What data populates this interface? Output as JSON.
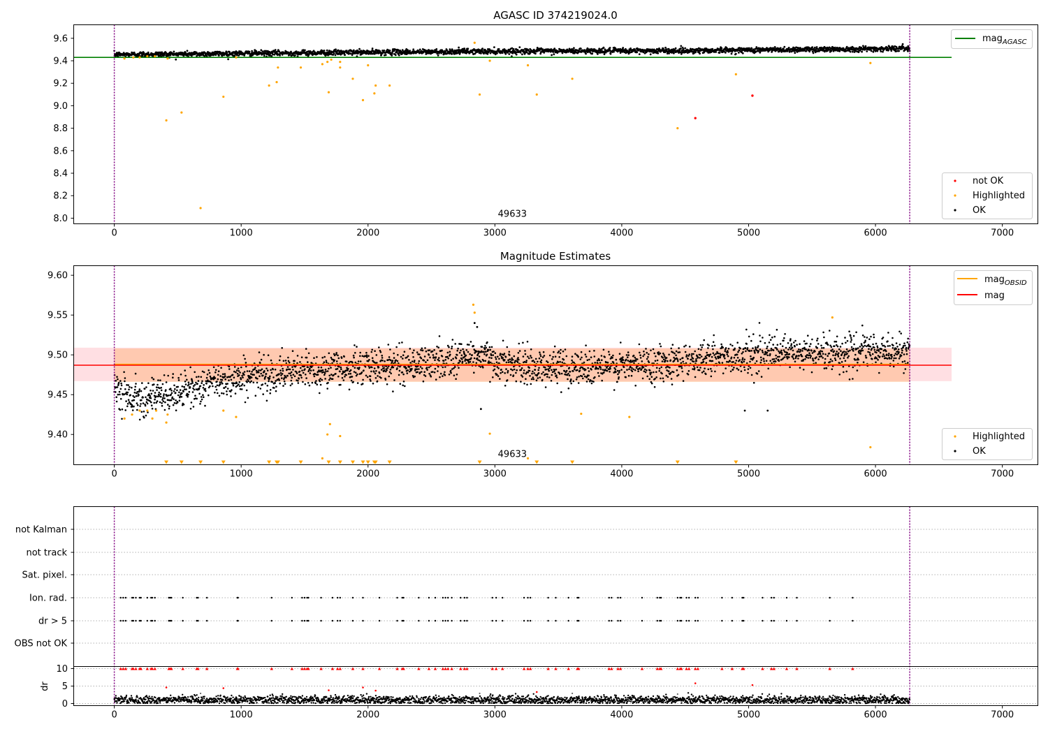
{
  "chart_data": [
    {
      "type": "scatter",
      "title": "AGASC ID 374219024.0",
      "xlim": [
        -320,
        7280
      ],
      "ylim": [
        7.95,
        9.72
      ],
      "x_ticks": [
        0,
        1000,
        2000,
        3000,
        4000,
        5000,
        6000,
        7000
      ],
      "x_tick_labels": [
        "0",
        "1000",
        "2000",
        "3000",
        "4000",
        "5000",
        "6000",
        "7000"
      ],
      "y_ticks": [
        8.0,
        8.2,
        8.4,
        8.6,
        8.8,
        9.0,
        9.2,
        9.4,
        9.6
      ],
      "y_tick_labels": [
        "8.0",
        "8.2",
        "8.4",
        "8.6",
        "8.8",
        "9.0",
        "9.2",
        "9.4",
        "9.6"
      ],
      "vlines": [
        0,
        6270
      ],
      "hline": {
        "name": "mag_AGASC",
        "y": 9.43,
        "x_end": 6600,
        "color": "#008000"
      },
      "annotation": {
        "text": "49633",
        "x": 3000,
        "y": 8.0
      },
      "ok_series": {
        "name": "OK",
        "color": "#000000",
        "x_range": [
          0,
          6270
        ],
        "trend": [
          [
            0,
            9.455
          ],
          [
            1500,
            9.47
          ],
          [
            3000,
            9.485
          ],
          [
            4500,
            9.49
          ],
          [
            6270,
            9.51
          ]
        ],
        "spread": 0.012
      },
      "highlighted_points": [
        [
          80,
          9.42
        ],
        [
          150,
          9.43
        ],
        [
          200,
          9.43
        ],
        [
          260,
          9.44
        ],
        [
          320,
          9.44
        ],
        [
          410,
          8.87
        ],
        [
          420,
          9.42
        ],
        [
          530,
          8.94
        ],
        [
          680,
          8.09
        ],
        [
          860,
          9.08
        ],
        [
          960,
          9.43
        ],
        [
          1220,
          9.18
        ],
        [
          1280,
          9.21
        ],
        [
          1290,
          9.34
        ],
        [
          1470,
          9.34
        ],
        [
          1640,
          9.37
        ],
        [
          1680,
          9.39
        ],
        [
          1690,
          9.12
        ],
        [
          1710,
          9.41
        ],
        [
          1780,
          9.34
        ],
        [
          1780,
          9.39
        ],
        [
          1880,
          9.24
        ],
        [
          1960,
          9.05
        ],
        [
          2000,
          9.36
        ],
        [
          2050,
          9.11
        ],
        [
          2060,
          9.18
        ],
        [
          2170,
          9.18
        ],
        [
          2840,
          9.56
        ],
        [
          2880,
          9.1
        ],
        [
          2960,
          9.4
        ],
        [
          3260,
          9.36
        ],
        [
          3330,
          9.1
        ],
        [
          3610,
          9.24
        ],
        [
          4440,
          8.8
        ],
        [
          4900,
          9.28
        ],
        [
          5960,
          9.38
        ]
      ],
      "not_ok_points": [
        [
          4580,
          8.89
        ],
        [
          5030,
          9.09
        ]
      ],
      "legend_upper": [
        "mag_AGASC"
      ],
      "legend_lower": [
        "not OK",
        "Highlighted",
        "OK"
      ]
    },
    {
      "type": "scatter",
      "title": "Magnitude Estimates",
      "xlim": [
        -320,
        7280
      ],
      "ylim": [
        9.362,
        9.612
      ],
      "x_ticks": [
        0,
        1000,
        2000,
        3000,
        4000,
        5000,
        6000,
        7000
      ],
      "x_tick_labels": [
        "0",
        "1000",
        "2000",
        "3000",
        "4000",
        "5000",
        "6000",
        "7000"
      ],
      "y_ticks": [
        9.4,
        9.45,
        9.5,
        9.55,
        9.6
      ],
      "y_tick_labels": [
        "9.40",
        "9.45",
        "9.50",
        "9.55",
        "9.60"
      ],
      "vlines": [
        0,
        6270
      ],
      "mag_band": {
        "y0": 9.467,
        "y1": 9.509,
        "x_end": 6600
      },
      "mag_obsid_band": {
        "y0": 9.466,
        "y1": 9.508,
        "x_end": 6270
      },
      "mag_line": {
        "name": "mag",
        "y": 9.487,
        "x_end": 6600,
        "color": "#ff0000"
      },
      "mag_obsid_line": {
        "name": "mag_OBSID",
        "y": 9.488,
        "x_end": 6270,
        "color": "#ffa500"
      },
      "annotation": {
        "text": "49633",
        "x": 3000,
        "y": 9.37
      },
      "ok_series": {
        "name": "OK",
        "color": "#000000",
        "x_range": [
          0,
          6270
        ],
        "trend": [
          [
            0,
            9.462
          ],
          [
            120,
            9.448
          ],
          [
            400,
            9.448
          ],
          [
            900,
            9.47
          ],
          [
            1500,
            9.48
          ],
          [
            2000,
            9.485
          ],
          [
            2500,
            9.49
          ],
          [
            2850,
            9.5
          ],
          [
            3200,
            9.485
          ],
          [
            4000,
            9.485
          ],
          [
            4500,
            9.493
          ],
          [
            5000,
            9.5
          ],
          [
            6270,
            9.505
          ]
        ],
        "spread": 0.011
      },
      "ok_outliers": [
        [
          2840,
          9.54
        ],
        [
          2860,
          9.535
        ],
        [
          2890,
          9.432
        ],
        [
          4970,
          9.43
        ],
        [
          5150,
          9.43
        ]
      ],
      "highlighted_points": [
        [
          80,
          9.42
        ],
        [
          140,
          9.425
        ],
        [
          200,
          9.43
        ],
        [
          260,
          9.43
        ],
        [
          300,
          9.42
        ],
        [
          330,
          9.43
        ],
        [
          410,
          9.415
        ],
        [
          420,
          9.425
        ],
        [
          860,
          9.43
        ],
        [
          960,
          9.422
        ],
        [
          1680,
          9.4
        ],
        [
          1700,
          9.413
        ],
        [
          1780,
          9.398
        ],
        [
          2830,
          9.563
        ],
        [
          2840,
          9.553
        ],
        [
          2960,
          9.401
        ],
        [
          3680,
          9.426
        ],
        [
          4060,
          9.422
        ],
        [
          5660,
          9.547
        ],
        [
          5960,
          9.384
        ],
        [
          1640,
          9.37
        ],
        [
          3260,
          9.37
        ]
      ],
      "clipped_low_x": [
        410,
        530,
        680,
        860,
        1220,
        1280,
        1290,
        1470,
        1690,
        1780,
        1880,
        1960,
        2000,
        2050,
        2060,
        2170,
        2880,
        3330,
        3610,
        4440,
        4900
      ],
      "legend_upper": [
        "mag_OBSID",
        "mag"
      ],
      "legend_lower": [
        "Highlighted",
        "OK"
      ]
    },
    {
      "type": "scatter",
      "title": "",
      "xlim": [
        -320,
        7280
      ],
      "flag_rows": [
        "not Kalman",
        "not track",
        "Sat. pixel.",
        "Ion. rad.",
        "dr > 5",
        "OBS not OK"
      ],
      "flag_x": [
        50,
        70,
        90,
        140,
        150,
        170,
        200,
        210,
        260,
        290,
        300,
        320,
        430,
        440,
        450,
        540,
        650,
        660,
        730,
        970,
        975,
        1240,
        1400,
        1480,
        1500,
        1520,
        1530,
        1630,
        1720,
        1760,
        1780,
        1880,
        1960,
        2090,
        2230,
        2270,
        2280,
        2400,
        2480,
        2530,
        2590,
        2610,
        2630,
        2660,
        2730,
        2760,
        2780,
        2980,
        3010,
        3060,
        3230,
        3260,
        3280,
        3420,
        3480,
        3580,
        3650,
        3660,
        3900,
        3920,
        3970,
        3990,
        4160,
        4280,
        4300,
        4310,
        4440,
        4460,
        4470,
        4510,
        4530,
        4580,
        4600,
        4790,
        4870,
        4950,
        4960,
        5110,
        5180,
        5200,
        5300,
        5380,
        5640,
        5820
      ],
      "dr_ticks": [
        0,
        5,
        10
      ],
      "dr_tick_labels": [
        "0",
        "5",
        "10"
      ],
      "dr_ylabel": "dr",
      "dr_ylim": [
        -0.6,
        10.6
      ],
      "dr_ok": {
        "color": "#000000",
        "x_range": [
          0,
          6270
        ],
        "mean": 1.0,
        "spread": 0.6
      },
      "dr_red_points": [
        [
          410,
          4.6
        ],
        [
          860,
          4.4
        ],
        [
          1690,
          3.8
        ],
        [
          1960,
          4.6
        ],
        [
          2060,
          3.7
        ],
        [
          3330,
          3.3
        ],
        [
          4580,
          5.8
        ],
        [
          5030,
          5.3
        ]
      ],
      "dr_gray_points": [
        [
          680,
          2.9
        ],
        [
          2880,
          2.9
        ],
        [
          3610,
          2.9
        ],
        [
          4440,
          2.7
        ]
      ],
      "vlines": [
        0,
        6270
      ],
      "x_ticks": [
        0,
        1000,
        2000,
        3000,
        4000,
        5000,
        6000,
        7000
      ],
      "x_tick_labels": [
        "0",
        "1000",
        "2000",
        "3000",
        "4000",
        "5000",
        "6000",
        "7000"
      ]
    }
  ],
  "legend": {
    "mag": "mag",
    "mag_sub_agasc": "AGASC",
    "mag_sub_obsid": "OBSID",
    "not_ok": "not OK",
    "highlighted": "Highlighted",
    "ok": "OK"
  }
}
